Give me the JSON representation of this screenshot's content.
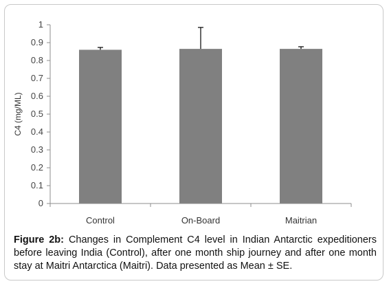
{
  "caption": {
    "label": "Figure 2b:",
    "text": " Changes in Complement C4 level in Indian Antarctic expeditioners before leaving India (Control), after one month ship journey and after one month stay at Maitri Antarctica (Maitri). Data presented as Mean ± SE."
  },
  "chart_data": {
    "type": "bar",
    "categories": [
      "Control",
      "On-Board",
      "Maitrian"
    ],
    "values": [
      0.86,
      0.865,
      0.865
    ],
    "error": [
      0.013,
      0.12,
      0.012
    ],
    "ylabel": "C4 (mg/ML)",
    "xlabel": "",
    "title": "",
    "ylim": [
      0,
      1
    ],
    "yticks": [
      "0",
      "0.1",
      "0.2",
      "0.3",
      "0.4",
      "0.5",
      "0.6",
      "0.7",
      "0.8",
      "0.9",
      "1"
    ],
    "bar_color": "#808080",
    "grid": false
  }
}
